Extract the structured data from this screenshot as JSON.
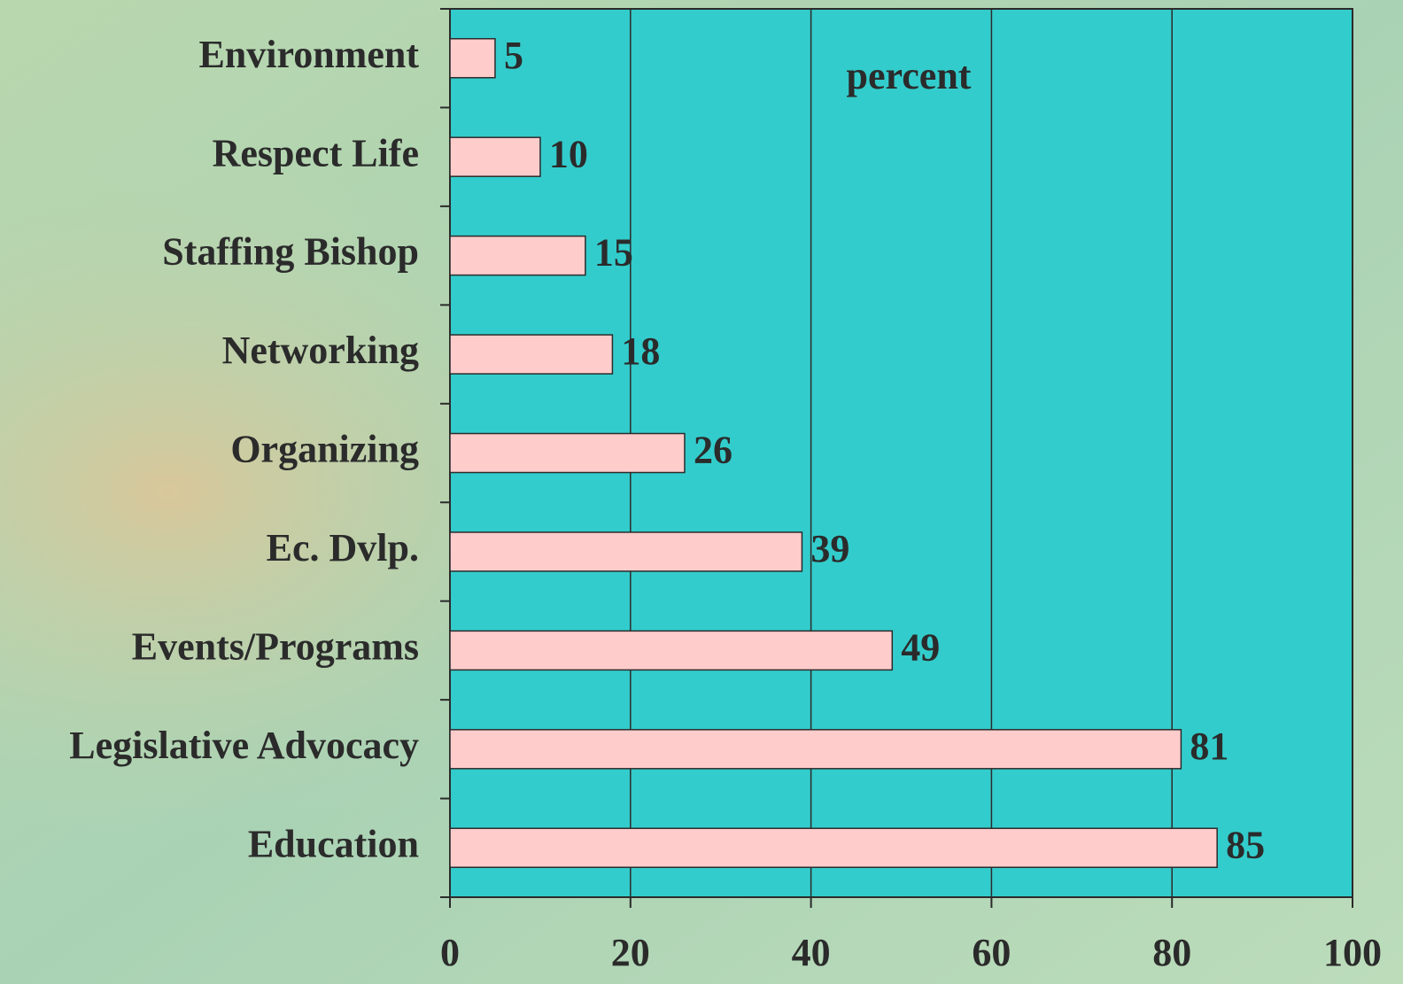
{
  "chart_data": {
    "type": "bar",
    "orientation": "horizontal",
    "annotation": "percent",
    "categories": [
      "Environment",
      "Respect Life",
      "Staffing Bishop",
      "Networking",
      "Organizing",
      "Ec. Dvlp.",
      "Events/Programs",
      "Legislative Advocacy",
      "Education"
    ],
    "values": [
      5,
      10,
      15,
      18,
      26,
      39,
      49,
      81,
      85
    ],
    "color": "#ffcccc",
    "plot_color": "#33cccc",
    "xlim": [
      0,
      100
    ],
    "xticks": [
      0,
      20,
      40,
      60,
      80,
      100
    ],
    "grid": true
  }
}
